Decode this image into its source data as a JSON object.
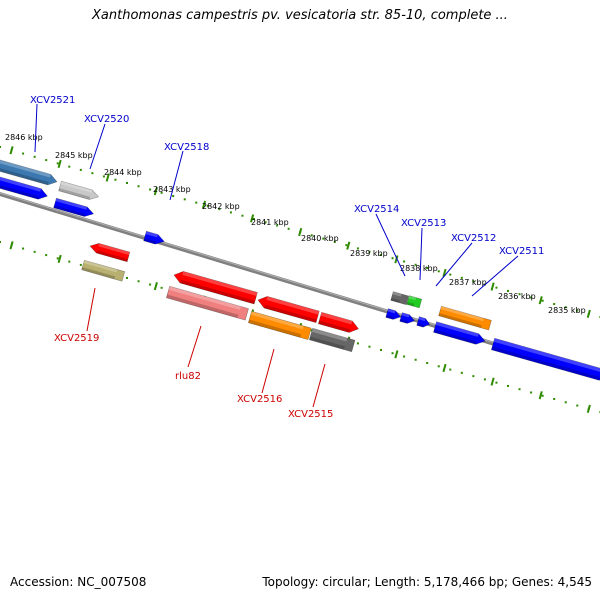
{
  "title": "Xanthomonas campestris pv. vesicatoria str. 85-10, complete ...",
  "accession": "Accession: NC_007508",
  "topology": "Topology: circular; Length: 5,178,466 bp; Genes: 4,545",
  "colors": {
    "background": "#ffffff",
    "backbone": "#808080",
    "tick": "#2e8b00",
    "label_top": "#0000cc",
    "label_bottom": "#cc0000",
    "blue": "#0000ff",
    "steelblue": "#3b78b0",
    "silver": "#c8c8c8",
    "red": "#ff0000",
    "pink": "#f08080",
    "orange": "#ff8c00",
    "gray": "#666666",
    "olive": "#b8b070",
    "green": "#22cc22"
  },
  "scale_labels": [
    "2846 kbp",
    "2845 kbp",
    "2844 kbp",
    "2843 kbp",
    "2842 kbp",
    "2841 kbp",
    "2840 kbp",
    "2839 kbp",
    "2838 kbp",
    "2837 kbp",
    "2836 kbp",
    "2835 kbp"
  ],
  "labels": {
    "top": [
      "XCV2521",
      "XCV2520",
      "XCV2518",
      "XCV2514",
      "XCV2513",
      "XCV2512",
      "XCV2511"
    ],
    "bottom": [
      "XCV2519",
      "rlu82",
      "XCV2516",
      "XCV2515"
    ]
  },
  "features": [
    {
      "id": "XCV2521",
      "strand": "+",
      "color": "steelblue"
    },
    {
      "id": "XCV2520",
      "strand": "+",
      "color": "silver"
    },
    {
      "id": "XCV2518",
      "strand": "+",
      "color": "blue"
    },
    {
      "id": "XCV2514",
      "strand": "+",
      "color": "gray"
    },
    {
      "id": "XCV2513",
      "strand": "+",
      "color": "green"
    },
    {
      "id": "XCV2512",
      "strand": "+",
      "color": "orange"
    },
    {
      "id": "XCV2511",
      "strand": "+",
      "color": "blue"
    },
    {
      "id": "XCV2519",
      "strand": "-",
      "color": "olive"
    },
    {
      "id": "rlu82",
      "strand": "-",
      "color": "pink"
    },
    {
      "id": "XCV2516",
      "strand": "-",
      "color": "orange"
    },
    {
      "id": "XCV2515",
      "strand": "-",
      "color": "gray"
    }
  ]
}
